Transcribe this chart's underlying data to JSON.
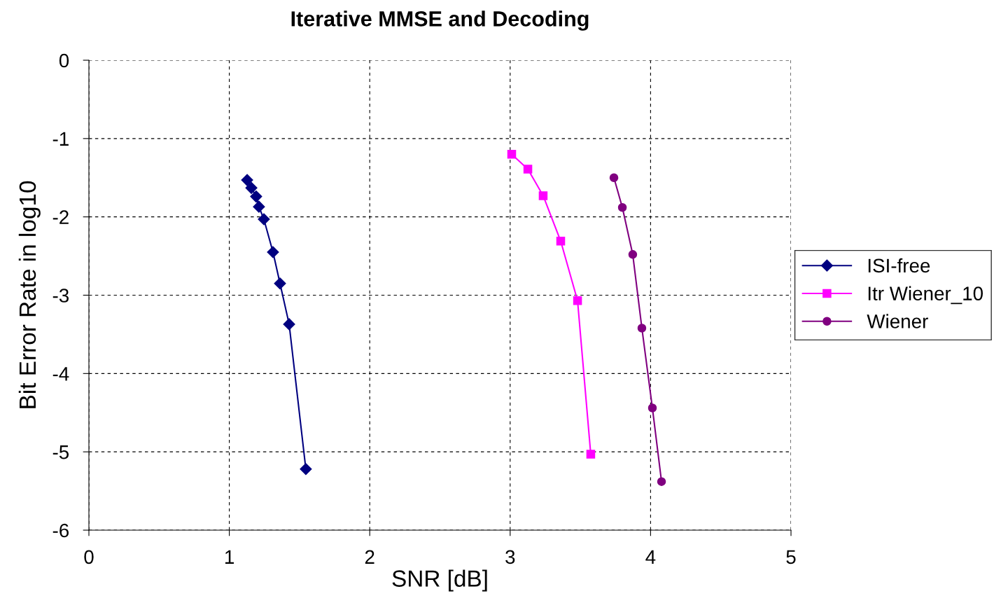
{
  "chart_data": {
    "type": "line",
    "title": "Iterative MMSE and Decoding",
    "xlabel": "SNR [dB]",
    "ylabel": "Bit Error Rate in log10",
    "xlim": [
      0,
      5
    ],
    "xticks": [
      0,
      1,
      2,
      3,
      4,
      5
    ],
    "ylim": [
      -6,
      0
    ],
    "yticks": [
      -6,
      -5,
      -4,
      -3,
      -2,
      -1,
      0
    ],
    "grid": true,
    "legend": "right",
    "line_style": "solid",
    "series": [
      {
        "name": "ISI-free",
        "color": "#000080",
        "marker": "diamond",
        "x": [
          1.127,
          1.157,
          1.191,
          1.211,
          1.246,
          1.311,
          1.361,
          1.426,
          1.545
        ],
        "values": [
          -1.53,
          -1.63,
          -1.74,
          -1.87,
          -2.03,
          -2.45,
          -2.85,
          -3.37,
          -5.22
        ]
      },
      {
        "name": "Itr Wiener_10",
        "color": "#ff00ff",
        "marker": "square",
        "x": [
          3.011,
          3.126,
          3.235,
          3.36,
          3.48,
          3.574
        ],
        "values": [
          -1.2,
          -1.39,
          -1.73,
          -2.31,
          -3.07,
          -5.03
        ]
      },
      {
        "name": "Wiener",
        "color": "#800080",
        "marker": "circle",
        "x": [
          3.739,
          3.799,
          3.873,
          3.938,
          4.013,
          4.078
        ],
        "values": [
          -1.5,
          -1.88,
          -2.48,
          -3.42,
          -4.44,
          -5.38
        ]
      }
    ]
  }
}
